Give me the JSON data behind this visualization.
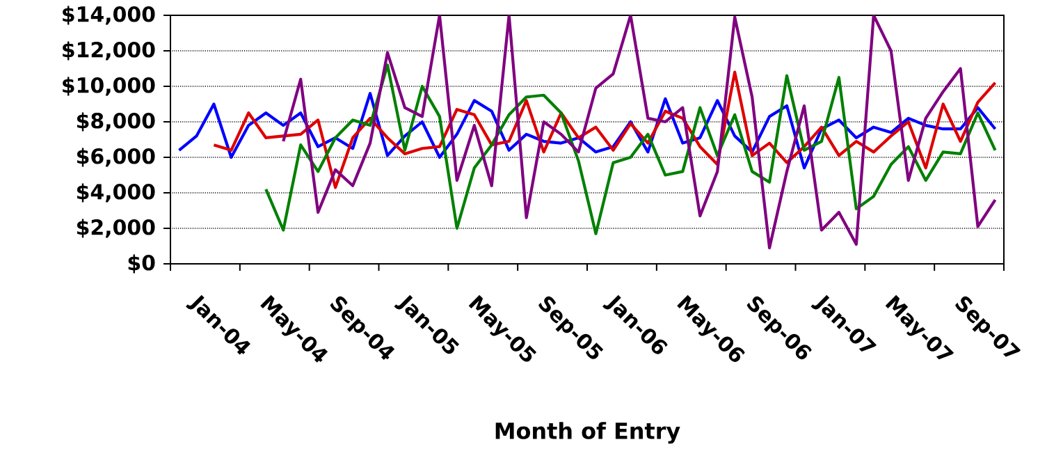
{
  "chart_data": {
    "type": "line",
    "xlabel": "Month of Entry",
    "categories": [
      null,
      "Jan-04",
      null,
      null,
      null,
      "May-04",
      null,
      null,
      null,
      "Sep-04",
      null,
      null,
      null,
      "Jan-05",
      null,
      null,
      null,
      "May-05",
      null,
      null,
      null,
      "Sep-05",
      null,
      null,
      null,
      "Jan-06",
      null,
      null,
      null,
      "May-06",
      null,
      null,
      null,
      "Sep-06",
      null,
      null,
      null,
      "Jan-07",
      null,
      null,
      null,
      "May-07",
      null,
      null,
      null,
      "Sep-07",
      null,
      null
    ],
    "series": [
      {
        "color": "#0000ff",
        "values": [
          6400,
          7200,
          9000,
          6000,
          7800,
          8500,
          7800,
          8500,
          6600,
          7100,
          6500,
          9600,
          6100,
          7200,
          8000,
          6000,
          7300,
          9200,
          8600,
          6400,
          7300,
          6900,
          6800,
          7100,
          6300,
          6600,
          8000,
          6300,
          9300,
          6800,
          7100,
          9200,
          7200,
          6300,
          8300,
          8900,
          5400,
          7600,
          8100,
          7100,
          7700,
          7400,
          8200,
          7800,
          7600,
          7600,
          8800,
          7600
        ]
      },
      {
        "color": "#dd0000",
        "values": [
          null,
          null,
          6700,
          6400,
          8500,
          7100,
          7200,
          7300,
          8100,
          4300,
          7100,
          8200,
          7100,
          6200,
          6500,
          6600,
          8700,
          8400,
          6700,
          6900,
          9200,
          6300,
          8500,
          7100,
          7700,
          6400,
          7900,
          6800,
          8600,
          8200,
          6600,
          5600,
          10800,
          6100,
          6800,
          5700,
          6600,
          7700,
          6100,
          6900,
          6300,
          7200,
          8000,
          5400,
          9000,
          6900,
          9100,
          10200
        ]
      },
      {
        "color": "#008000",
        "values": [
          null,
          null,
          null,
          null,
          null,
          4200,
          1900,
          6700,
          5200,
          7100,
          8100,
          7800,
          11200,
          6400,
          10000,
          8300,
          2000,
          5400,
          6700,
          8400,
          9400,
          9500,
          8500,
          5800,
          1700,
          5700,
          6000,
          7300,
          5000,
          5200,
          8800,
          6100,
          8400,
          5200,
          4600,
          10600,
          6400,
          6900,
          10500,
          3100,
          3800,
          5600,
          6600,
          4700,
          6300,
          6200,
          8500,
          6400
        ]
      },
      {
        "color": "#800080",
        "values": [
          null,
          null,
          null,
          null,
          null,
          null,
          6900,
          10400,
          2900,
          5300,
          4400,
          6800,
          11900,
          8800,
          8300,
          14000,
          4700,
          7800,
          4400,
          14000,
          2600,
          8000,
          7300,
          6300,
          9900,
          10700,
          14000,
          8200,
          8000,
          8800,
          2700,
          5200,
          13900,
          9400,
          900,
          5200,
          8900,
          1900,
          2900,
          1100,
          14000,
          12000,
          4700,
          8200,
          9700,
          11000,
          2100,
          3600
        ]
      }
    ],
    "ylim": [
      0,
      14000
    ],
    "yticks": [
      {
        "value": 0,
        "label": "$0"
      },
      {
        "value": 2000,
        "label": "$2,000"
      },
      {
        "value": 4000,
        "label": "$4,000"
      },
      {
        "value": 6000,
        "label": "$6,000"
      },
      {
        "value": 8000,
        "label": "$8,000"
      },
      {
        "value": 10000,
        "label": "$10,000"
      },
      {
        "value": 12000,
        "label": "$12,000"
      },
      {
        "value": 14000,
        "label": "$14,000"
      }
    ],
    "grid": "y"
  }
}
